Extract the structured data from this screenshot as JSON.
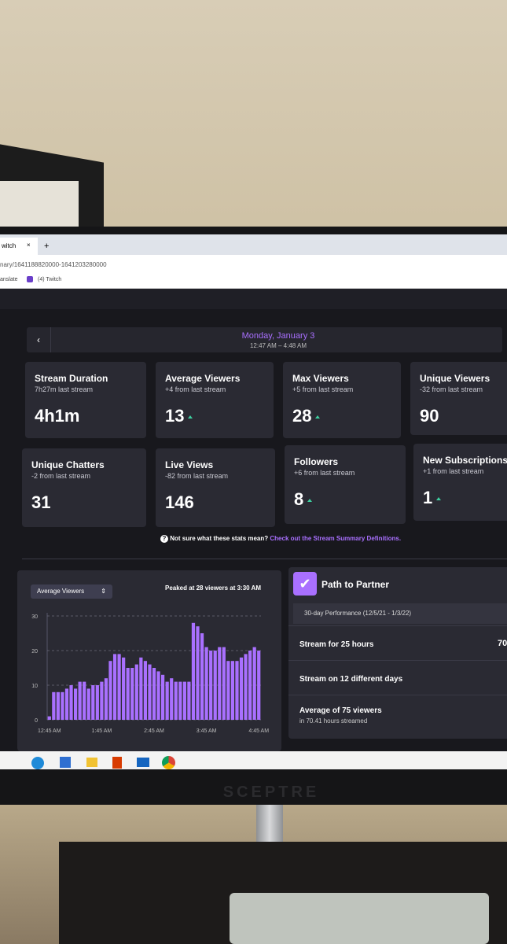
{
  "browser": {
    "tab": "witch",
    "close": "×",
    "new_tab": "+",
    "url": "nary/1641188820000-1641203280000",
    "bookmarks": [
      "anslate",
      "(4) Twitch"
    ]
  },
  "header": {
    "date": "Monday, January 3",
    "time_range": "12:47 AM – 4:48 AM",
    "back": "‹"
  },
  "stats": [
    {
      "title": "Stream Duration",
      "sub": "7h27m last stream",
      "value": "4h1m",
      "up": false
    },
    {
      "title": "Average Viewers",
      "sub": "+4 from last stream",
      "value": "13",
      "up": true
    },
    {
      "title": "Max Viewers",
      "sub": "+5 from last stream",
      "value": "28",
      "up": true
    },
    {
      "title": "Unique Viewers",
      "sub": "-32 from last stream",
      "value": "90",
      "up": false
    },
    {
      "title": "Unique Chatters",
      "sub": "-2 from last stream",
      "value": "31",
      "up": false
    },
    {
      "title": "Live Views",
      "sub": "-82 from last stream",
      "value": "146",
      "up": false
    },
    {
      "title": "Followers",
      "sub": "+6 from last stream",
      "value": "8",
      "up": true
    },
    {
      "title": "New Subscriptions",
      "sub": "+1 from last stream",
      "value": "1",
      "up": true
    }
  ],
  "note": {
    "icon": "?",
    "text": "Not sure what these stats mean?",
    "link": "Check out the Stream Summary Definitions."
  },
  "chart_data": {
    "type": "bar",
    "dropdown": "Average Viewers",
    "annotation": "Peaked at 28 viewers at 3:30 AM",
    "categories": [
      "12:45 AM",
      null,
      null,
      null,
      null,
      null,
      null,
      null,
      null,
      null,
      null,
      null,
      "1:45 AM",
      null,
      null,
      null,
      null,
      null,
      null,
      null,
      null,
      null,
      null,
      null,
      "2:45 AM",
      null,
      null,
      null,
      null,
      null,
      null,
      null,
      null,
      null,
      null,
      null,
      "3:45 AM",
      null,
      null,
      null,
      null,
      null,
      null,
      null,
      null,
      null,
      null,
      null,
      "4:45 AM"
    ],
    "values": [
      1,
      8,
      8,
      8,
      9,
      10,
      9,
      11,
      11,
      9,
      10,
      10,
      11,
      12,
      17,
      19,
      19,
      18,
      15,
      15,
      16,
      18,
      17,
      16,
      15,
      14,
      13,
      11,
      12,
      11,
      11,
      11,
      11,
      28,
      27,
      25,
      21,
      20,
      20,
      21,
      21,
      17,
      17,
      17,
      18,
      19,
      20,
      21,
      20
    ],
    "color": "#a970ff",
    "ylim": [
      0,
      30
    ],
    "yticks": [
      0,
      10,
      20,
      30
    ],
    "grid": true
  },
  "partner": {
    "title": "Path to Partner",
    "period": "30-day Performance (12/5/21 - 1/3/22)",
    "rows": [
      {
        "label": "Stream for 25 hours",
        "value": "70"
      },
      {
        "label": "Stream on 12 different days"
      },
      {
        "label": "Average of 75 viewers",
        "sub": "in 70.41 hours streamed"
      }
    ]
  },
  "monitor": {
    "brand": "SCEPTRE"
  }
}
